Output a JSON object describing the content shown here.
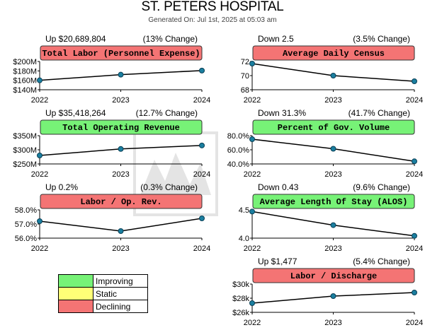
{
  "header": {
    "title": "ST. PETERS HOSPITAL",
    "subtitle": "Generated On: Jul 1st, 2025 at 05:03 am"
  },
  "colors": {
    "improving": "#77f277",
    "static": "#ffff77",
    "declining": "#f47474",
    "point": "#1a7fa0",
    "line": "#000000"
  },
  "legend": {
    "items": [
      {
        "label": "Improving",
        "color": "#77f277"
      },
      {
        "label": "Static",
        "color": "#ffff77"
      },
      {
        "label": "Declining",
        "color": "#f47474"
      }
    ]
  },
  "chart_data": [
    {
      "type": "line",
      "title": "Total Labor (Personnel Expense)",
      "status": "declining",
      "summary": "Up $20,689,804",
      "change": "(13% Change)",
      "x": [
        "2022",
        "2023",
        "2024"
      ],
      "values": [
        160000000,
        172000000,
        180700000
      ],
      "ylim": [
        140000000,
        200000000
      ],
      "yticks": [
        {
          "v": 140000000,
          "label": "$140M"
        },
        {
          "v": 160000000,
          "label": "$160M"
        },
        {
          "v": 180000000,
          "label": "$180M"
        },
        {
          "v": 200000000,
          "label": "$200M"
        }
      ]
    },
    {
      "type": "line",
      "title": "Average Daily Census",
      "status": "declining",
      "summary": "Down 2.5",
      "change": "(3.5% Change)",
      "x": [
        "2022",
        "2023",
        "2024"
      ],
      "values": [
        71.7,
        70.0,
        69.2
      ],
      "ylim": [
        68,
        72
      ],
      "yticks": [
        {
          "v": 68,
          "label": "68"
        },
        {
          "v": 70,
          "label": "70"
        },
        {
          "v": 72,
          "label": "72"
        }
      ]
    },
    {
      "type": "line",
      "title": "Total Operating Revenue",
      "status": "improving",
      "summary": "Up $35,418,264",
      "change": "(12.7% Change)",
      "x": [
        "2022",
        "2023",
        "2024"
      ],
      "values": [
        280000000,
        303000000,
        315400000
      ],
      "ylim": [
        250000000,
        350000000
      ],
      "yticks": [
        {
          "v": 250000000,
          "label": "$250M"
        },
        {
          "v": 300000000,
          "label": "$300M"
        },
        {
          "v": 350000000,
          "label": "$350M"
        }
      ]
    },
    {
      "type": "line",
      "title": "Percent of Gov. Volume",
      "status": "improving",
      "summary": "Down 31.3%",
      "change": "(41.7% Change)",
      "x": [
        "2022",
        "2023",
        "2024"
      ],
      "values": [
        75.0,
        61.5,
        43.7
      ],
      "ylim": [
        40,
        80
      ],
      "yticks": [
        {
          "v": 40,
          "label": "40.0%"
        },
        {
          "v": 60,
          "label": "60.0%"
        },
        {
          "v": 80,
          "label": "80.0%"
        }
      ]
    },
    {
      "type": "line",
      "title": "Labor / Op. Rev.",
      "status": "declining",
      "summary": "Up 0.2%",
      "change": "(0.3% Change)",
      "x": [
        "2022",
        "2023",
        "2024"
      ],
      "values": [
        57.2,
        56.5,
        57.4
      ],
      "ylim": [
        56,
        58
      ],
      "yticks": [
        {
          "v": 56,
          "label": "56.0%"
        },
        {
          "v": 57,
          "label": "57.0%"
        },
        {
          "v": 58,
          "label": "58.0%"
        }
      ]
    },
    {
      "type": "line",
      "title": "Average Length Of Stay (ALOS)",
      "status": "improving",
      "summary": "Down 0.43",
      "change": "(9.6% Change)",
      "x": [
        "2022",
        "2023",
        "2024"
      ],
      "values": [
        4.47,
        4.23,
        4.04
      ],
      "ylim": [
        4.0,
        4.5
      ],
      "yticks": [
        {
          "v": 4.0,
          "label": "4.0"
        },
        {
          "v": 4.5,
          "label": "4.5"
        }
      ]
    },
    {
      "type": "line",
      "title": "Labor / Discharge",
      "status": "declining",
      "summary": "Up $1,477",
      "change": "(5.4% Change)",
      "x": [
        "2022",
        "2023",
        "2024"
      ],
      "values": [
        27300,
        28300,
        28800
      ],
      "ylim": [
        26000,
        30000
      ],
      "yticks": [
        {
          "v": 26000,
          "label": "$26k"
        },
        {
          "v": 28000,
          "label": "$28k"
        },
        {
          "v": 30000,
          "label": "$30k"
        }
      ]
    }
  ]
}
